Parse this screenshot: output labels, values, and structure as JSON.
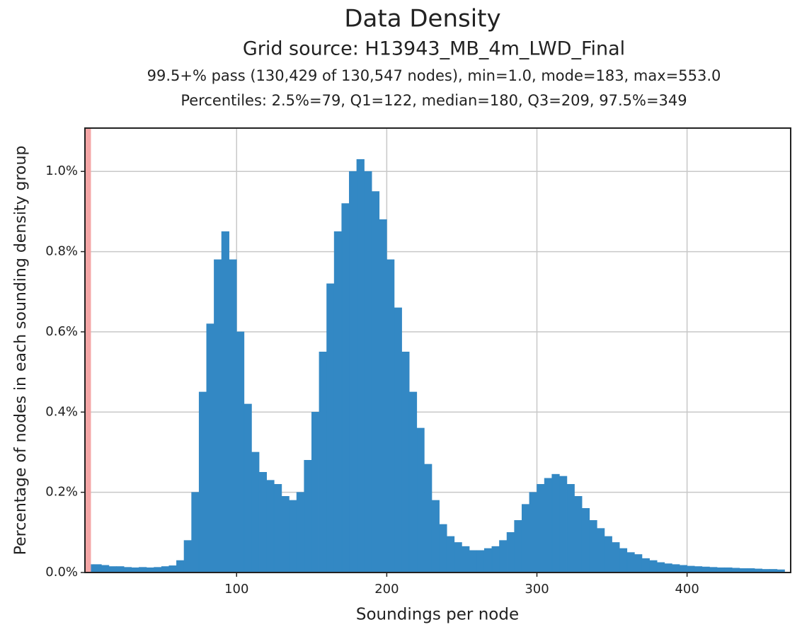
{
  "chart_data": {
    "type": "histogram",
    "title": "Data Density",
    "subtitle": "Grid source: H13943_MB_4m_LWD_Final",
    "annotations": [
      "99.5+% pass (130,429 of 130,547 nodes), min=1.0, mode=183, max=553.0",
      "Percentiles: 2.5%=79, Q1=122, median=180, Q3=209, 97.5%=349"
    ],
    "x_label": "Soundings per node",
    "y_label": "Percentage of nodes in each sounding density group",
    "bins": [
      0,
      5,
      10,
      15,
      20,
      25,
      30,
      35,
      40,
      45,
      50,
      55,
      60,
      65,
      70,
      75,
      80,
      85,
      90,
      95,
      100,
      105,
      110,
      115,
      120,
      125,
      130,
      135,
      140,
      145,
      150,
      155,
      160,
      165,
      170,
      175,
      180,
      185,
      190,
      195,
      200,
      205,
      210,
      215,
      220,
      225,
      230,
      235,
      240,
      245,
      250,
      255,
      260,
      265,
      270,
      275,
      280,
      285,
      290,
      295,
      300,
      305,
      310,
      315,
      320,
      325,
      330,
      335,
      340,
      345,
      350,
      355,
      360,
      365,
      370,
      375,
      380,
      385,
      390,
      395,
      400,
      405,
      410,
      415,
      420,
      425,
      430,
      435,
      440,
      445,
      450,
      455,
      460,
      465
    ],
    "values": [
      0.02,
      0.02,
      0.018,
      0.015,
      0.015,
      0.013,
      0.012,
      0.013,
      0.012,
      0.013,
      0.015,
      0.017,
      0.03,
      0.08,
      0.2,
      0.45,
      0.62,
      0.78,
      0.85,
      0.78,
      0.6,
      0.42,
      0.3,
      0.25,
      0.23,
      0.22,
      0.19,
      0.18,
      0.2,
      0.28,
      0.4,
      0.55,
      0.72,
      0.85,
      0.92,
      1.0,
      1.03,
      1.0,
      0.95,
      0.88,
      0.78,
      0.66,
      0.55,
      0.45,
      0.36,
      0.27,
      0.18,
      0.12,
      0.09,
      0.075,
      0.065,
      0.055,
      0.055,
      0.06,
      0.065,
      0.08,
      0.1,
      0.13,
      0.17,
      0.2,
      0.22,
      0.235,
      0.245,
      0.24,
      0.22,
      0.19,
      0.16,
      0.13,
      0.11,
      0.09,
      0.075,
      0.06,
      0.05,
      0.045,
      0.035,
      0.03,
      0.025,
      0.022,
      0.02,
      0.018,
      0.016,
      0.015,
      0.014,
      0.013,
      0.012,
      0.012,
      0.011,
      0.01,
      0.01,
      0.009,
      0.008,
      0.008,
      0.007
    ],
    "color": "#3388c4",
    "fail_region": {
      "range": [
        -1,
        3
      ],
      "color": "#f4a6a6"
    },
    "xlim": [
      -1,
      469
    ],
    "xticks": [
      100,
      200,
      300,
      400
    ],
    "ylim": [
      0,
      1.108
    ],
    "yticks": [
      {
        "value": 0,
        "label": "0.0%"
      },
      {
        "value": 0.2,
        "label": "0.2%"
      },
      {
        "value": 0.4,
        "label": "0.4%"
      },
      {
        "value": 0.6,
        "label": "0.6%"
      },
      {
        "value": 0.8,
        "label": "0.8%"
      },
      {
        "value": 1.0,
        "label": "1.0%"
      }
    ],
    "grid": true
  }
}
